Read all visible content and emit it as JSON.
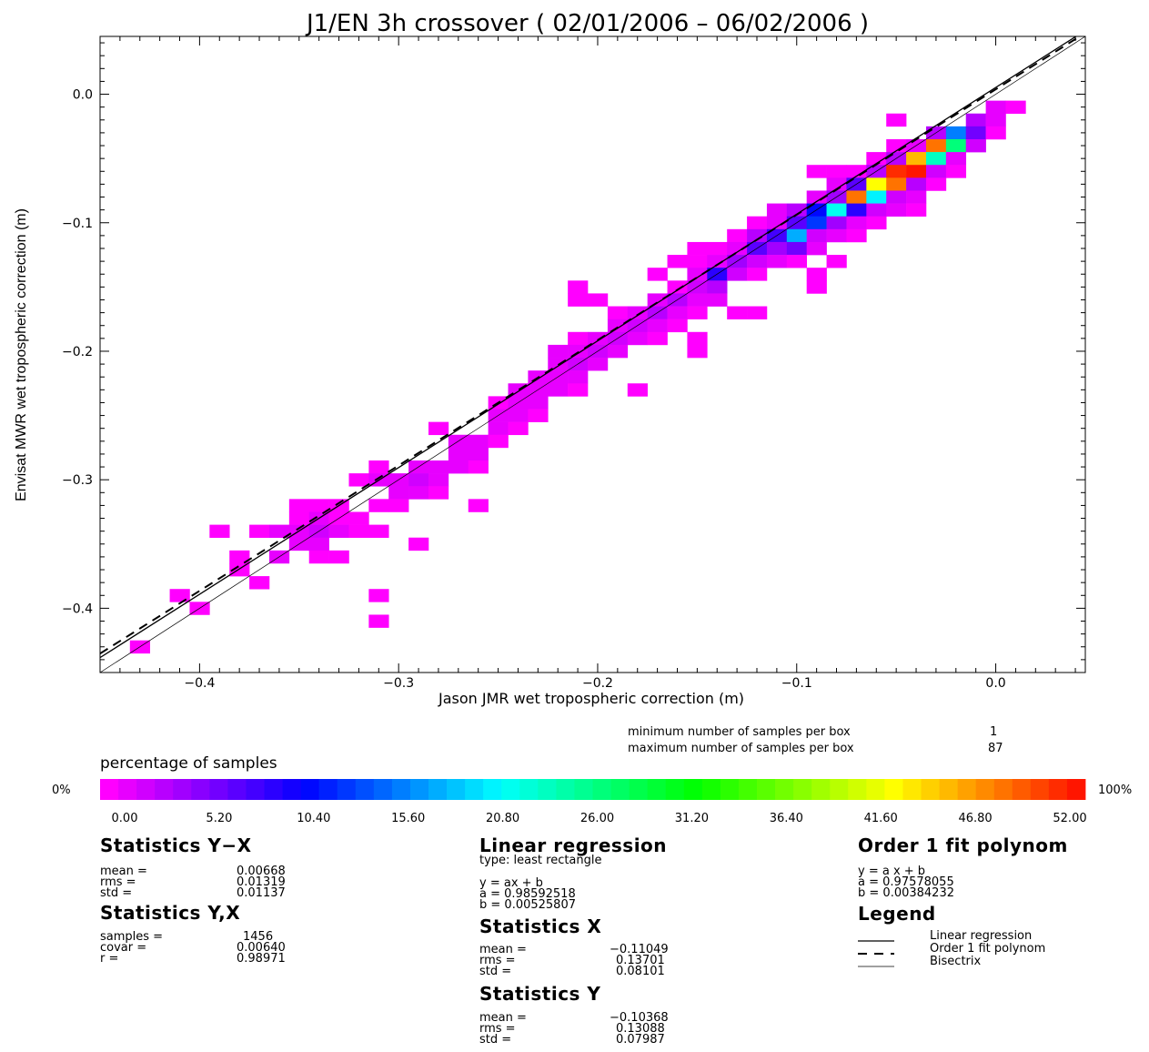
{
  "chart_data": {
    "type": "heatmap",
    "title": "J1/EN 3h crossover ( 02/01/2006 – 06/02/2006 )",
    "xlabel": "Jason JMR wet tropospheric correction (m)",
    "ylabel": "Envisat MWR wet tropospheric correction (m)",
    "xlim": [
      -0.45,
      0.045
    ],
    "ylim": [
      -0.45,
      0.045
    ],
    "xticks": [
      -0.4,
      -0.3,
      -0.2,
      -0.1,
      0.0
    ],
    "xtick_labels": [
      "−0.4",
      "−0.3",
      "−0.2",
      "−0.1",
      "0.0"
    ],
    "yticks": [
      0.0,
      -0.1,
      -0.2,
      -0.3,
      -0.4
    ],
    "ytick_labels": [
      "0.0",
      "−0.1",
      "−0.2",
      "−0.3",
      "−0.4"
    ],
    "bin_size": 0.01,
    "cells": [
      [
        -0.43,
        -0.43,
        1
      ],
      [
        -0.41,
        -0.39,
        1
      ],
      [
        -0.4,
        -0.4,
        1
      ],
      [
        -0.39,
        -0.34,
        1
      ],
      [
        -0.38,
        -0.37,
        1
      ],
      [
        -0.38,
        -0.36,
        1
      ],
      [
        -0.37,
        -0.34,
        1
      ],
      [
        -0.37,
        -0.38,
        1
      ],
      [
        -0.36,
        -0.34,
        2
      ],
      [
        -0.36,
        -0.36,
        2
      ],
      [
        -0.35,
        -0.32,
        1
      ],
      [
        -0.35,
        -0.33,
        1
      ],
      [
        -0.35,
        -0.34,
        3
      ],
      [
        -0.35,
        -0.35,
        2
      ],
      [
        -0.34,
        -0.32,
        1
      ],
      [
        -0.34,
        -0.33,
        2
      ],
      [
        -0.34,
        -0.34,
        4
      ],
      [
        -0.34,
        -0.35,
        2
      ],
      [
        -0.34,
        -0.36,
        1
      ],
      [
        -0.33,
        -0.32,
        1
      ],
      [
        -0.33,
        -0.33,
        1
      ],
      [
        -0.33,
        -0.34,
        2
      ],
      [
        -0.33,
        -0.36,
        1
      ],
      [
        -0.32,
        -0.3,
        1
      ],
      [
        -0.32,
        -0.33,
        1
      ],
      [
        -0.32,
        -0.34,
        1
      ],
      [
        -0.31,
        -0.29,
        1
      ],
      [
        -0.31,
        -0.3,
        2
      ],
      [
        -0.31,
        -0.32,
        1
      ],
      [
        -0.31,
        -0.34,
        1
      ],
      [
        -0.31,
        -0.39,
        1
      ],
      [
        -0.31,
        -0.41,
        1
      ],
      [
        -0.3,
        -0.3,
        3
      ],
      [
        -0.3,
        -0.31,
        3
      ],
      [
        -0.3,
        -0.32,
        1
      ],
      [
        -0.29,
        -0.29,
        2
      ],
      [
        -0.29,
        -0.3,
        4
      ],
      [
        -0.29,
        -0.31,
        2
      ],
      [
        -0.29,
        -0.35,
        1
      ],
      [
        -0.28,
        -0.26,
        1
      ],
      [
        -0.28,
        -0.29,
        2
      ],
      [
        -0.28,
        -0.3,
        3
      ],
      [
        -0.28,
        -0.31,
        1
      ],
      [
        -0.27,
        -0.27,
        2
      ],
      [
        -0.27,
        -0.28,
        3
      ],
      [
        -0.27,
        -0.29,
        3
      ],
      [
        -0.26,
        -0.27,
        2
      ],
      [
        -0.26,
        -0.28,
        2
      ],
      [
        -0.26,
        -0.29,
        1
      ],
      [
        -0.26,
        -0.32,
        1
      ],
      [
        -0.25,
        -0.24,
        1
      ],
      [
        -0.25,
        -0.25,
        2
      ],
      [
        -0.25,
        -0.26,
        2
      ],
      [
        -0.25,
        -0.27,
        1
      ],
      [
        -0.24,
        -0.23,
        2
      ],
      [
        -0.24,
        -0.24,
        3
      ],
      [
        -0.24,
        -0.25,
        3
      ],
      [
        -0.24,
        -0.26,
        1
      ],
      [
        -0.23,
        -0.22,
        2
      ],
      [
        -0.23,
        -0.23,
        3
      ],
      [
        -0.23,
        -0.24,
        2
      ],
      [
        -0.23,
        -0.25,
        1
      ],
      [
        -0.22,
        -0.2,
        2
      ],
      [
        -0.22,
        -0.21,
        2
      ],
      [
        -0.22,
        -0.22,
        3
      ],
      [
        -0.22,
        -0.23,
        3
      ],
      [
        -0.21,
        -0.15,
        1
      ],
      [
        -0.21,
        -0.16,
        1
      ],
      [
        -0.21,
        -0.19,
        1
      ],
      [
        -0.21,
        -0.2,
        3
      ],
      [
        -0.21,
        -0.21,
        4
      ],
      [
        -0.21,
        -0.22,
        2
      ],
      [
        -0.21,
        -0.23,
        1
      ],
      [
        -0.2,
        -0.16,
        1
      ],
      [
        -0.2,
        -0.19,
        2
      ],
      [
        -0.2,
        -0.2,
        4
      ],
      [
        -0.2,
        -0.21,
        2
      ],
      [
        -0.19,
        -0.17,
        1
      ],
      [
        -0.19,
        -0.18,
        2
      ],
      [
        -0.19,
        -0.19,
        4
      ],
      [
        -0.19,
        -0.2,
        2
      ],
      [
        -0.18,
        -0.17,
        2
      ],
      [
        -0.18,
        -0.18,
        4
      ],
      [
        -0.18,
        -0.19,
        3
      ],
      [
        -0.18,
        -0.23,
        1
      ],
      [
        -0.17,
        -0.14,
        1
      ],
      [
        -0.17,
        -0.16,
        2
      ],
      [
        -0.17,
        -0.17,
        5
      ],
      [
        -0.17,
        -0.18,
        3
      ],
      [
        -0.17,
        -0.19,
        1
      ],
      [
        -0.16,
        -0.13,
        1
      ],
      [
        -0.16,
        -0.15,
        1
      ],
      [
        -0.16,
        -0.16,
        5
      ],
      [
        -0.16,
        -0.17,
        3
      ],
      [
        -0.16,
        -0.18,
        1
      ],
      [
        -0.15,
        -0.12,
        1
      ],
      [
        -0.15,
        -0.13,
        1
      ],
      [
        -0.15,
        -0.14,
        2
      ],
      [
        -0.15,
        -0.15,
        4
      ],
      [
        -0.15,
        -0.16,
        3
      ],
      [
        -0.15,
        -0.17,
        1
      ],
      [
        -0.15,
        -0.19,
        1
      ],
      [
        -0.15,
        -0.2,
        1
      ],
      [
        -0.14,
        -0.12,
        1
      ],
      [
        -0.14,
        -0.13,
        3
      ],
      [
        -0.14,
        -0.14,
        15
      ],
      [
        -0.14,
        -0.15,
        5
      ],
      [
        -0.14,
        -0.16,
        2
      ],
      [
        -0.13,
        -0.11,
        1
      ],
      [
        -0.13,
        -0.12,
        2
      ],
      [
        -0.13,
        -0.13,
        8
      ],
      [
        -0.13,
        -0.14,
        4
      ],
      [
        -0.13,
        -0.17,
        1
      ],
      [
        -0.12,
        -0.1,
        1
      ],
      [
        -0.12,
        -0.11,
        5
      ],
      [
        -0.12,
        -0.12,
        12
      ],
      [
        -0.12,
        -0.13,
        4
      ],
      [
        -0.12,
        -0.14,
        1
      ],
      [
        -0.12,
        -0.17,
        1
      ],
      [
        -0.11,
        -0.09,
        2
      ],
      [
        -0.11,
        -0.1,
        3
      ],
      [
        -0.11,
        -0.11,
        14
      ],
      [
        -0.11,
        -0.12,
        8
      ],
      [
        -0.11,
        -0.13,
        2
      ],
      [
        -0.1,
        -0.09,
        5
      ],
      [
        -0.1,
        -0.1,
        12
      ],
      [
        -0.1,
        -0.11,
        30
      ],
      [
        -0.1,
        -0.12,
        11
      ],
      [
        -0.1,
        -0.13,
        1
      ],
      [
        -0.09,
        -0.06,
        1
      ],
      [
        -0.09,
        -0.08,
        2
      ],
      [
        -0.09,
        -0.09,
        18
      ],
      [
        -0.09,
        -0.1,
        22
      ],
      [
        -0.09,
        -0.11,
        4
      ],
      [
        -0.09,
        -0.12,
        2
      ],
      [
        -0.09,
        -0.14,
        1
      ],
      [
        -0.09,
        -0.15,
        1
      ],
      [
        -0.08,
        -0.06,
        1
      ],
      [
        -0.08,
        -0.07,
        3
      ],
      [
        -0.08,
        -0.08,
        7
      ],
      [
        -0.08,
        -0.09,
        36
      ],
      [
        -0.08,
        -0.1,
        8
      ],
      [
        -0.08,
        -0.11,
        3
      ],
      [
        -0.08,
        -0.13,
        1
      ],
      [
        -0.07,
        -0.06,
        1
      ],
      [
        -0.07,
        -0.07,
        12
      ],
      [
        -0.07,
        -0.08,
        80
      ],
      [
        -0.07,
        -0.09,
        16
      ],
      [
        -0.07,
        -0.1,
        3
      ],
      [
        -0.07,
        -0.11,
        1
      ],
      [
        -0.06,
        -0.05,
        1
      ],
      [
        -0.06,
        -0.06,
        5
      ],
      [
        -0.06,
        -0.07,
        70
      ],
      [
        -0.06,
        -0.08,
        34
      ],
      [
        -0.06,
        -0.09,
        4
      ],
      [
        -0.06,
        -0.1,
        1
      ],
      [
        -0.05,
        -0.02,
        1
      ],
      [
        -0.05,
        -0.04,
        1
      ],
      [
        -0.05,
        -0.05,
        5
      ],
      [
        -0.05,
        -0.06,
        85
      ],
      [
        -0.05,
        -0.07,
        80
      ],
      [
        -0.05,
        -0.08,
        4
      ],
      [
        -0.05,
        -0.09,
        2
      ],
      [
        -0.04,
        -0.04,
        3
      ],
      [
        -0.04,
        -0.05,
        75
      ],
      [
        -0.04,
        -0.06,
        87
      ],
      [
        -0.04,
        -0.07,
        6
      ],
      [
        -0.04,
        -0.08,
        2
      ],
      [
        -0.04,
        -0.09,
        1
      ],
      [
        -0.03,
        -0.03,
        5
      ],
      [
        -0.03,
        -0.04,
        80
      ],
      [
        -0.03,
        -0.05,
        40
      ],
      [
        -0.03,
        -0.06,
        4
      ],
      [
        -0.03,
        -0.07,
        1
      ],
      [
        -0.02,
        -0.03,
        26
      ],
      [
        -0.02,
        -0.04,
        45
      ],
      [
        -0.02,
        -0.05,
        3
      ],
      [
        -0.02,
        -0.06,
        1
      ],
      [
        -0.01,
        -0.02,
        5
      ],
      [
        -0.01,
        -0.03,
        10
      ],
      [
        -0.01,
        -0.04,
        4
      ],
      [
        0.0,
        -0.01,
        3
      ],
      [
        0.0,
        -0.02,
        2
      ],
      [
        0.0,
        -0.03,
        1
      ],
      [
        0.01,
        -0.01,
        1
      ]
    ],
    "lines": [
      {
        "name": "Linear regression",
        "style": "solid",
        "a": 0.98592518,
        "b": 0.00525807
      },
      {
        "name": "Order 1 fit polynom",
        "style": "dashed",
        "a": 0.97578055,
        "b": 0.00384232
      },
      {
        "name": "Bisectrix",
        "style": "thin",
        "a": 1.0,
        "b": 0.0
      }
    ],
    "colorbar": {
      "title": "percentage of samples",
      "min_label": "0%",
      "max_label": "100%",
      "tick_labels": [
        "0.00",
        "5.20",
        "10.40",
        "15.60",
        "20.80",
        "26.00",
        "31.20",
        "36.40",
        "41.60",
        "46.80",
        "52.00"
      ],
      "colors": [
        "#ff00ff",
        "#e700ff",
        "#d000ff",
        "#b800ff",
        "#a100ff",
        "#8900ff",
        "#7200ff",
        "#5a00ff",
        "#4300ff",
        "#2b00ff",
        "#1400ff",
        "#0008ff",
        "#0020ff",
        "#0037ff",
        "#004fff",
        "#0066ff",
        "#007eff",
        "#0095ff",
        "#00adff",
        "#00c4ff",
        "#00dcff",
        "#00f3ff",
        "#00fff0",
        "#00ffd8",
        "#00ffc1",
        "#00ffa9",
        "#00ff92",
        "#00ff7a",
        "#00ff63",
        "#00ff4b",
        "#00ff34",
        "#00ff1c",
        "#00ff05",
        "#14ff00",
        "#2bff00",
        "#43ff00",
        "#5aff00",
        "#72ff00",
        "#89ff00",
        "#a1ff00",
        "#b8ff00",
        "#d0ff00",
        "#e7ff00",
        "#ffff00",
        "#ffe800",
        "#ffd000",
        "#ffb900",
        "#ffa100",
        "#ff8a00",
        "#ff7300",
        "#ff5b00",
        "#ff4400",
        "#ff2c00",
        "#ff1500"
      ]
    },
    "samples_box": {
      "min_label": "minimum number of samples per box",
      "min_value": "1",
      "max_label": "maximum number of samples per box",
      "max_value": "87"
    }
  },
  "stats": {
    "yx": {
      "title": "Statistics Y−X",
      "rows": [
        {
          "label": "mean =",
          "value": "0.00668"
        },
        {
          "label": "rms =",
          "value": "0.01319"
        },
        {
          "label": "std =",
          "value": "0.01137"
        }
      ]
    },
    "y_x": {
      "title": "Statistics Y,X",
      "rows": [
        {
          "label": "samples =",
          "value": "1456"
        },
        {
          "label": "covar =",
          "value": "0.00640"
        },
        {
          "label": "r =",
          "value": "0.98971"
        }
      ]
    },
    "linreg": {
      "title": "Linear regression",
      "type_line": "type: least rectangle",
      "eq": "y = ax + b",
      "rows": [
        {
          "label": "a =",
          "value": "0.98592518"
        },
        {
          "label": "b =",
          "value": "0.00525807"
        }
      ]
    },
    "sx": {
      "title": "Statistics X",
      "rows": [
        {
          "label": "mean =",
          "value": "−0.11049"
        },
        {
          "label": "rms =",
          "value": "0.13701"
        },
        {
          "label": "std =",
          "value": "0.08101"
        }
      ]
    },
    "sy": {
      "title": "Statistics Y",
      "rows": [
        {
          "label": "mean =",
          "value": "−0.10368"
        },
        {
          "label": "rms =",
          "value": "0.13088"
        },
        {
          "label": "std =",
          "value": "0.07987"
        }
      ]
    },
    "poly": {
      "title": "Order 1 fit polynom",
      "eq": "y = a x + b",
      "rows": [
        {
          "label": "a =",
          "value": "0.97578055"
        },
        {
          "label": "b =",
          "value": "0.00384232"
        }
      ]
    },
    "legend": {
      "title": "Legend",
      "items": [
        "Linear regression",
        "Order 1 fit polynom",
        "Bisectrix"
      ]
    }
  }
}
